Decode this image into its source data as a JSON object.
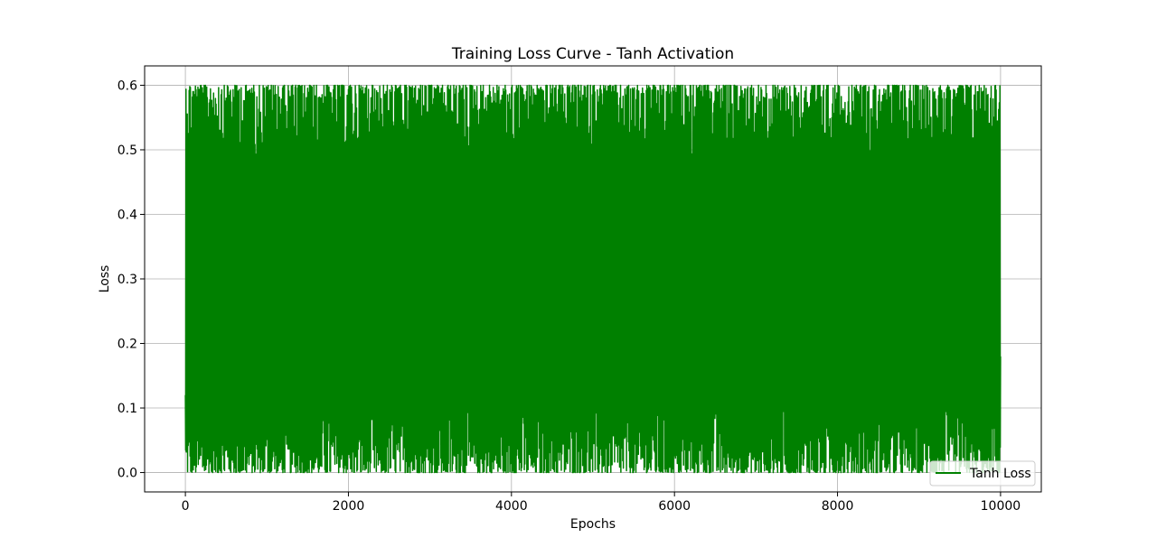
{
  "chart_data": {
    "type": "line",
    "title": "Training Loss Curve - Tanh Activation",
    "xlabel": "Epochs",
    "ylabel": "Loss",
    "xlim": [
      -500,
      10500
    ],
    "ylim": [
      -0.03,
      0.63
    ],
    "xticks": [
      0,
      2000,
      4000,
      6000,
      8000,
      10000
    ],
    "xtick_labels": [
      "0",
      "2000",
      "4000",
      "6000",
      "8000",
      "10000"
    ],
    "yticks": [
      0.0,
      0.1,
      0.2,
      0.3,
      0.4,
      0.5,
      0.6
    ],
    "ytick_labels": [
      "0.0",
      "0.1",
      "0.2",
      "0.3",
      "0.4",
      "0.5",
      "0.6"
    ],
    "grid": true,
    "legend_position": "lower-right",
    "series": [
      {
        "name": "Tanh Loss",
        "color": "#008000",
        "x_range": [
          0,
          10000
        ],
        "y_min_approx": 0.0,
        "y_max_approx": 0.6,
        "description_values": {
          "envelope_upper": 0.6,
          "envelope_lower": 0.0,
          "start_value": 0.12,
          "end_value": 0.18
        }
      }
    ]
  }
}
